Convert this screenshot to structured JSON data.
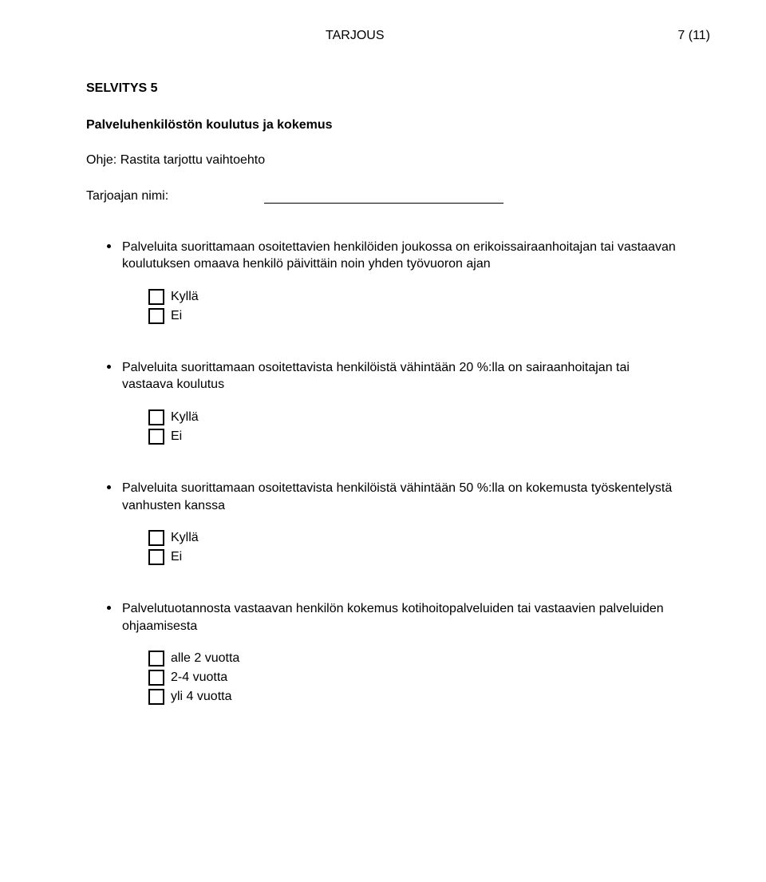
{
  "header": {
    "doc_type": "TARJOUS",
    "page_indicator": "7 (11)"
  },
  "section": {
    "title": "SELVITYS 5",
    "subheading": "Palveluhenkilöstön koulutus ja kokemus",
    "instruction": "Ohje: Rastita tarjottu vaihtoehto",
    "name_label": "Tarjoajan nimi:"
  },
  "items": [
    {
      "text": "Palveluita suorittamaan osoitettavien henkilöiden joukossa on erikoissairaanhoitajan tai vastaavan koulutuksen omaava henkilö päivittäin noin yhden työvuoron ajan",
      "options": [
        "Kyllä",
        "Ei"
      ]
    },
    {
      "text": "Palveluita suorittamaan osoitettavista henkilöistä vähintään 20 %:lla on sairaanhoitajan tai vastaava koulutus",
      "options": [
        "Kyllä",
        "Ei"
      ]
    },
    {
      "text": "Palveluita suorittamaan osoitettavista henkilöistä vähintään 50 %:lla on kokemusta työskentelystä vanhusten kanssa",
      "options": [
        "Kyllä",
        "Ei"
      ]
    },
    {
      "text": "Palvelutuotannosta vastaavan henkilön kokemus kotihoitopalveluiden tai vastaavien palveluiden ohjaamisesta",
      "options": [
        "alle 2 vuotta",
        "2-4 vuotta",
        "yli 4 vuotta"
      ]
    }
  ]
}
